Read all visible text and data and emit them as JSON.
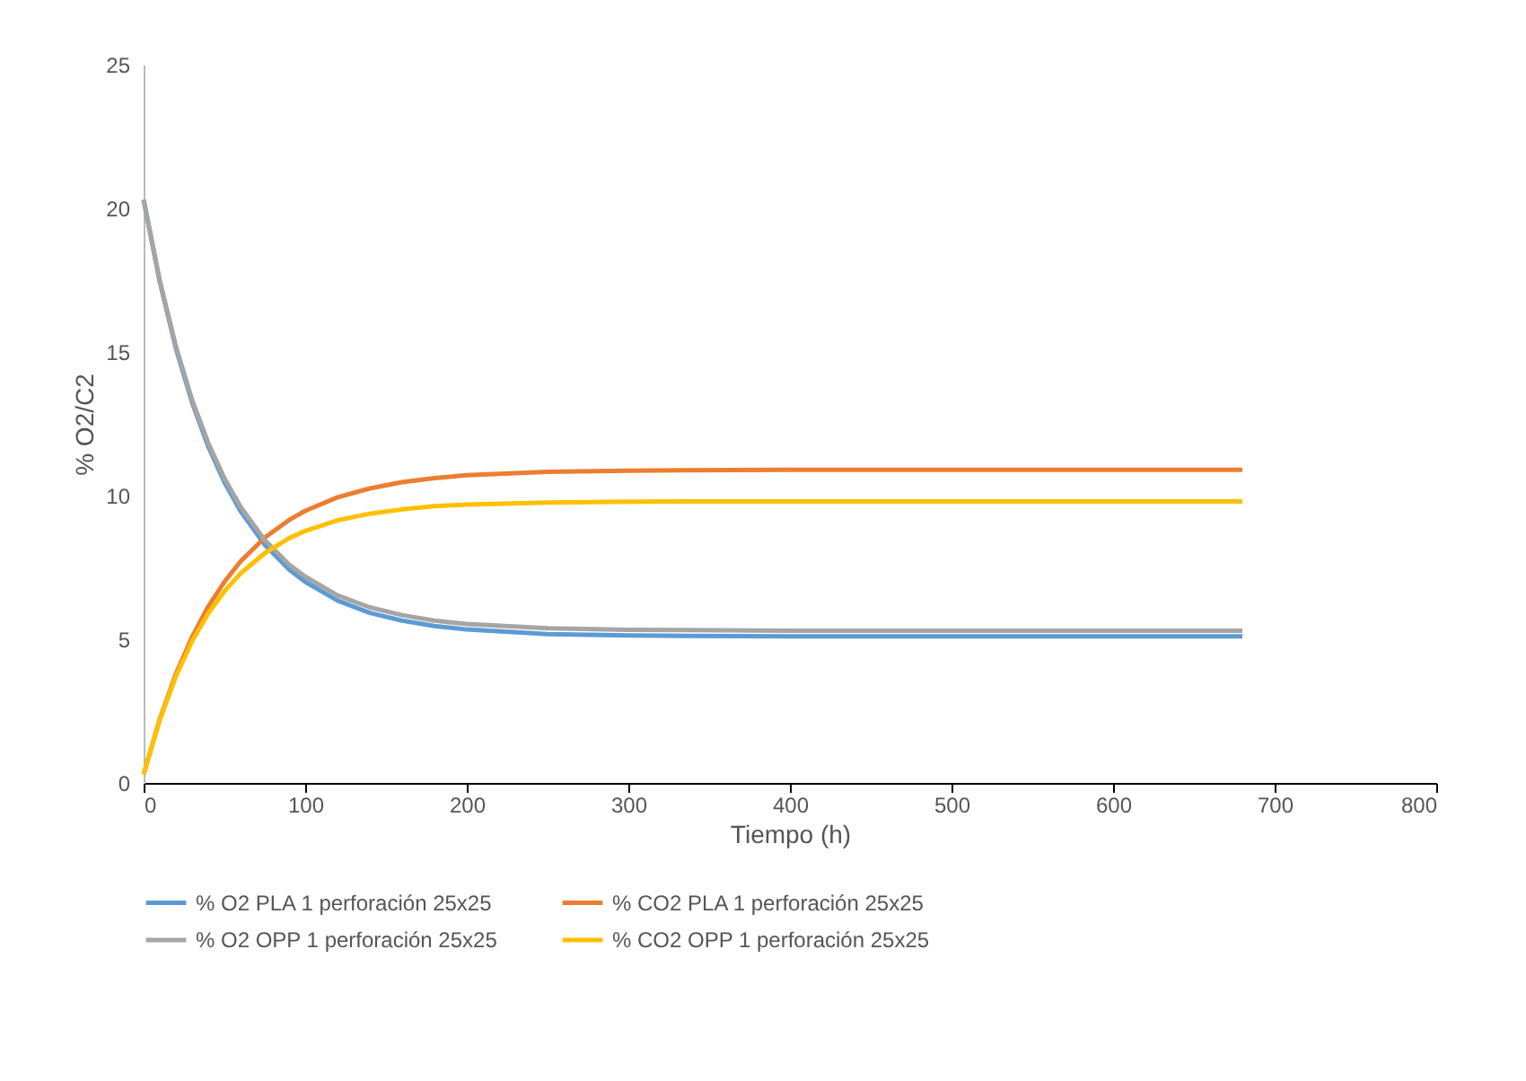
{
  "chart_data": {
    "type": "line",
    "xlabel": "Tiempo (h)",
    "ylabel": "% O2/C2",
    "x": [
      0,
      10,
      20,
      30,
      40,
      50,
      60,
      75,
      90,
      100,
      120,
      140,
      160,
      180,
      200,
      250,
      300,
      400,
      500,
      600,
      680
    ],
    "xlim": [
      0,
      800
    ],
    "xticks": [
      0,
      100,
      200,
      300,
      400,
      500,
      600,
      700,
      800
    ],
    "ylim": [
      0,
      25
    ],
    "yticks": [
      0,
      5,
      10,
      15,
      20,
      25
    ],
    "grid": false,
    "legend": "bottom",
    "marker": "none",
    "line_style": "solid",
    "series": [
      {
        "name": "% O2 PLA 1 perforación 25x25",
        "color": "#5b9bd5",
        "values": [
          20.3,
          17.44,
          15.12,
          13.24,
          11.71,
          10.47,
          9.46,
          8.29,
          7.43,
          7.0,
          6.35,
          5.92,
          5.65,
          5.46,
          5.34,
          5.18,
          5.13,
          5.1,
          5.1,
          5.1,
          5.1
        ]
      },
      {
        "name": "% CO2 PLA 1 perforación 25x25",
        "color": "#ed7d31",
        "values": [
          0.3,
          2.22,
          3.8,
          5.08,
          6.14,
          7.0,
          7.71,
          8.54,
          9.15,
          9.47,
          9.94,
          10.25,
          10.47,
          10.61,
          10.71,
          10.83,
          10.87,
          10.9,
          10.9,
          10.9,
          10.9
        ]
      },
      {
        "name": "% O2 OPP 1 perforación 25x25",
        "color": "#a5a5a5",
        "values": [
          20.3,
          17.48,
          15.19,
          13.33,
          11.83,
          10.6,
          9.61,
          8.45,
          7.6,
          7.18,
          6.53,
          6.11,
          5.84,
          5.65,
          5.53,
          5.38,
          5.33,
          5.3,
          5.3,
          5.3,
          5.3
        ]
      },
      {
        "name": "% CO2 OPP 1 perforación 25x25",
        "color": "#ffc000",
        "values": [
          0.3,
          2.19,
          3.71,
          4.93,
          5.9,
          6.67,
          7.29,
          8.0,
          8.52,
          8.77,
          9.14,
          9.37,
          9.52,
          9.63,
          9.69,
          9.76,
          9.79,
          9.8,
          9.8,
          9.8,
          9.8
        ]
      }
    ]
  }
}
